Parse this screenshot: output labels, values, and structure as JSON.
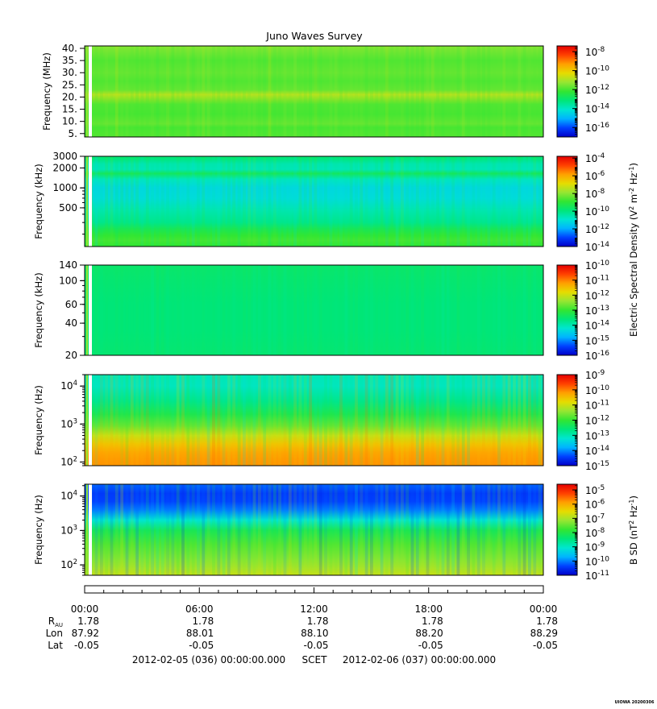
{
  "title": "Juno Waves Survey",
  "colors": {
    "colormap": [
      "#0000c8",
      "#0040ff",
      "#00b4ff",
      "#00e6d0",
      "#00e678",
      "#32e632",
      "#96e632",
      "#e6dc00",
      "#ffa000",
      "#ff4000",
      "#e60000"
    ]
  },
  "chart_data": [
    {
      "type": "heatmap",
      "id": "panel-1",
      "ylabel": "Frequency (MHz)",
      "yscale": "linear",
      "ylim": [
        3.6,
        41.0
      ],
      "yticks": [
        {
          "label": "40.",
          "value": 40
        },
        {
          "label": "35.",
          "value": 35
        },
        {
          "label": "30.",
          "value": 30
        },
        {
          "label": "25.",
          "value": 25
        },
        {
          "label": "20.",
          "value": 20
        },
        {
          "label": "15.",
          "value": 15
        },
        {
          "label": "10.",
          "value": 10
        },
        {
          "label": "5.",
          "value": 5
        }
      ],
      "colorbar": {
        "scale": "log",
        "range_exp": [
          -17,
          -7.4
        ],
        "ticks": [
          {
            "mant": "10",
            "exp": "-8",
            "value": -8
          },
          {
            "mant": "10",
            "exp": "-10",
            "value": -10
          },
          {
            "mant": "10",
            "exp": "-12",
            "value": -12
          },
          {
            "mant": "10",
            "exp": "-14",
            "value": -14
          },
          {
            "mant": "10",
            "exp": "-16",
            "value": -16
          }
        ]
      },
      "bands": [
        {
          "f": 40.5,
          "level": 0.58
        },
        {
          "f": 35,
          "level": 0.53
        },
        {
          "f": 30,
          "level": 0.55
        },
        {
          "f": 26.5,
          "level": 0.53
        },
        {
          "f": 23,
          "level": 0.55
        },
        {
          "f": 21,
          "level": 0.64
        },
        {
          "f": 17,
          "level": 0.53
        },
        {
          "f": 13,
          "level": 0.52
        },
        {
          "f": 9,
          "level": 0.55
        },
        {
          "f": 7.5,
          "level": 0.52
        },
        {
          "f": 5,
          "level": 0.53
        }
      ]
    },
    {
      "type": "heatmap",
      "id": "panel-2",
      "ylabel": "Frequency (kHz)",
      "yscale": "log",
      "ylim": [
        130,
        3000
      ],
      "yticks": [
        {
          "label": "3000",
          "value": 3000
        },
        {
          "label": "2000",
          "value": 2000
        },
        {
          "label": "1000",
          "value": 1000
        },
        {
          "label": "500",
          "value": 500
        }
      ],
      "colorbar": {
        "scale": "log",
        "range_exp": [
          -14,
          -3.8
        ],
        "ticks": [
          {
            "mant": "10",
            "exp": "-4",
            "value": -4
          },
          {
            "mant": "10",
            "exp": "-6",
            "value": -6
          },
          {
            "mant": "10",
            "exp": "-8",
            "value": -8
          },
          {
            "mant": "10",
            "exp": "-10",
            "value": -10
          },
          {
            "mant": "10",
            "exp": "-12",
            "value": -12
          },
          {
            "mant": "10",
            "exp": "-14",
            "value": -14
          }
        ]
      },
      "bands": [
        {
          "f": 2800,
          "level": 0.4
        },
        {
          "f": 2300,
          "level": 0.34
        },
        {
          "f": 1900,
          "level": 0.33
        },
        {
          "f": 1650,
          "level": 0.44
        },
        {
          "f": 1350,
          "level": 0.32
        },
        {
          "f": 1000,
          "level": 0.27
        },
        {
          "f": 700,
          "level": 0.28
        },
        {
          "f": 450,
          "level": 0.34
        },
        {
          "f": 300,
          "level": 0.38
        },
        {
          "f": 240,
          "level": 0.45
        },
        {
          "f": 190,
          "level": 0.5
        },
        {
          "f": 160,
          "level": 0.52
        },
        {
          "f": 135,
          "level": 0.5
        }
      ]
    },
    {
      "type": "heatmap",
      "id": "panel-3",
      "ylabel": "Frequency (kHz)",
      "yscale": "log",
      "ylim": [
        20,
        140
      ],
      "yticks": [
        {
          "label": "140",
          "value": 140
        },
        {
          "label": "100",
          "value": 100
        },
        {
          "label": "60",
          "value": 60
        },
        {
          "label": "40",
          "value": 40
        },
        {
          "label": "20",
          "value": 20
        }
      ],
      "colorbar": {
        "scale": "log",
        "range_exp": [
          -16,
          -10
        ],
        "ticks": [
          {
            "mant": "10",
            "exp": "-10",
            "value": -10
          },
          {
            "mant": "10",
            "exp": "-11",
            "value": -11
          },
          {
            "mant": "10",
            "exp": "-12",
            "value": -12
          },
          {
            "mant": "10",
            "exp": "-13",
            "value": -13
          },
          {
            "mant": "10",
            "exp": "-14",
            "value": -14
          },
          {
            "mant": "10",
            "exp": "-15",
            "value": -15
          },
          {
            "mant": "10",
            "exp": "-16",
            "value": -16
          }
        ]
      },
      "bands": [
        {
          "f": 140,
          "level": 0.42
        },
        {
          "f": 100,
          "level": 0.41
        },
        {
          "f": 60,
          "level": 0.4
        },
        {
          "f": 35,
          "level": 0.4
        },
        {
          "f": 20,
          "level": 0.41
        }
      ]
    },
    {
      "type": "heatmap",
      "id": "panel-4",
      "ylabel": "Frequency (Hz)",
      "yscale": "log",
      "ylim": [
        80,
        20000
      ],
      "yticks": [
        {
          "mant": "10",
          "exp": "4",
          "value": 10000
        },
        {
          "mant": "10",
          "exp": "3",
          "value": 1000
        },
        {
          "mant": "10",
          "exp": "2",
          "value": 100
        }
      ],
      "colorbar": {
        "scale": "log",
        "range_exp": [
          -15,
          -9
        ],
        "ticks": [
          {
            "mant": "10",
            "exp": "-9",
            "value": -9
          },
          {
            "mant": "10",
            "exp": "-10",
            "value": -10
          },
          {
            "mant": "10",
            "exp": "-11",
            "value": -11
          },
          {
            "mant": "10",
            "exp": "-12",
            "value": -12
          },
          {
            "mant": "10",
            "exp": "-13",
            "value": -13
          },
          {
            "mant": "10",
            "exp": "-14",
            "value": -14
          },
          {
            "mant": "10",
            "exp": "-15",
            "value": -15
          }
        ]
      },
      "bands": [
        {
          "f": 20000,
          "level": 0.33
        },
        {
          "f": 10000,
          "level": 0.32
        },
        {
          "f": 4000,
          "level": 0.38
        },
        {
          "f": 1800,
          "level": 0.46
        },
        {
          "f": 900,
          "level": 0.55
        },
        {
          "f": 500,
          "level": 0.66
        },
        {
          "f": 300,
          "level": 0.74
        },
        {
          "f": 180,
          "level": 0.79
        },
        {
          "f": 100,
          "level": 0.81
        },
        {
          "f": 80,
          "level": 0.81
        }
      ]
    },
    {
      "type": "heatmap",
      "id": "panel-5",
      "ylabel": "Frequency (Hz)",
      "yscale": "log",
      "ylim": [
        50,
        22000
      ],
      "yticks": [
        {
          "mant": "10",
          "exp": "4",
          "value": 10000
        },
        {
          "mant": "10",
          "exp": "3",
          "value": 1000
        },
        {
          "mant": "10",
          "exp": "2",
          "value": 100
        }
      ],
      "colorbar": {
        "scale": "log",
        "range_exp": [
          -11,
          -4.6
        ],
        "ticks": [
          {
            "mant": "10",
            "exp": "-5",
            "value": -5
          },
          {
            "mant": "10",
            "exp": "-6",
            "value": -6
          },
          {
            "mant": "10",
            "exp": "-7",
            "value": -7
          },
          {
            "mant": "10",
            "exp": "-8",
            "value": -8
          },
          {
            "mant": "10",
            "exp": "-9",
            "value": -9
          },
          {
            "mant": "10",
            "exp": "-10",
            "value": -10
          },
          {
            "mant": "10",
            "exp": "-11",
            "value": -11
          }
        ]
      },
      "bands": [
        {
          "f": 22000,
          "level": 0.13
        },
        {
          "f": 12000,
          "level": 0.09
        },
        {
          "f": 7000,
          "level": 0.1
        },
        {
          "f": 4000,
          "level": 0.15
        },
        {
          "f": 2000,
          "level": 0.3
        },
        {
          "f": 1000,
          "level": 0.45
        },
        {
          "f": 400,
          "level": 0.53
        },
        {
          "f": 150,
          "level": 0.58
        },
        {
          "f": 80,
          "level": 0.62
        },
        {
          "f": 50,
          "level": 0.66
        }
      ]
    }
  ],
  "colorbar_label_1": "Electric Spectral Density (V",
  "colorbar_label_1_sup1": "2",
  "colorbar_label_1_mid": " m",
  "colorbar_label_1_sup2": "-2",
  "colorbar_label_1_mid2": " Hz",
  "colorbar_label_1_sup3": "-1",
  "colorbar_label_1_end": ")",
  "colorbar_label_2": "B SD (nT",
  "colorbar_label_2_sup1": "2",
  "colorbar_label_2_mid": " Hz",
  "colorbar_label_2_sup2": "-1",
  "colorbar_label_2_end": ")",
  "time_axis": {
    "ticks": [
      "00:00",
      "06:00",
      "12:00",
      "18:00",
      "00:00"
    ],
    "minor_per_major": 6,
    "rows": [
      {
        "label": "R",
        "label_sub": "AU",
        "values": [
          "1.78",
          "1.78",
          "1.78",
          "1.78",
          "1.78"
        ]
      },
      {
        "label": "Lon",
        "values": [
          "87.92",
          "88.01",
          "88.10",
          "88.20",
          "88.29"
        ]
      },
      {
        "label": "Lat",
        "values": [
          "-0.05",
          "-0.05",
          "-0.05",
          "-0.05",
          "-0.05"
        ]
      }
    ],
    "range_start": "2012-02-05 (036) 00:00:00.000",
    "range_label": "SCET",
    "range_end": "2012-02-06 (037) 00:00:00.000"
  },
  "watermark": "UIOWA 20200306"
}
